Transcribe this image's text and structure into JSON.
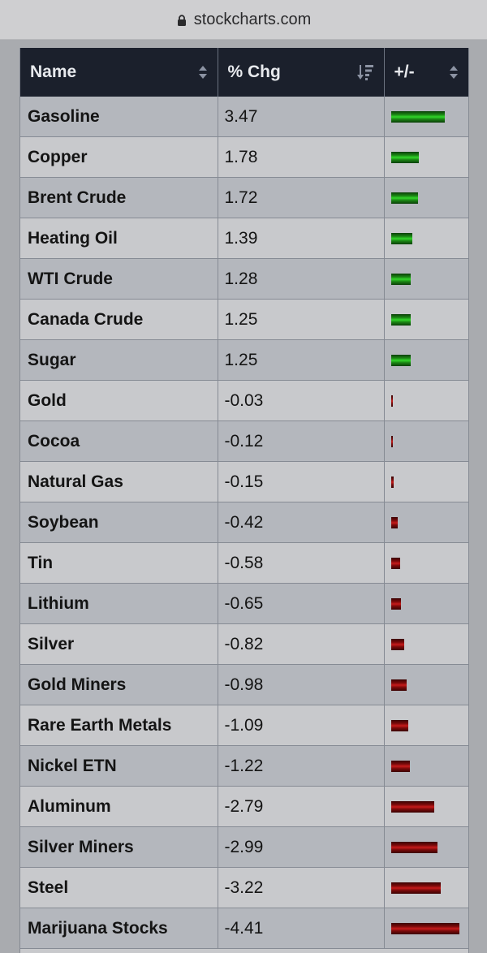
{
  "browser": {
    "url": "stockcharts.com",
    "lock_icon": "lock-icon"
  },
  "table": {
    "headers": {
      "name": "Name",
      "chg": "% Chg",
      "plusminus": "+/-"
    },
    "sort_icons": {
      "name": "sort-updown-icon",
      "chg": "sort-descending-icon",
      "plusminus": "sort-updown-icon"
    },
    "colors": {
      "header_bg": "#1b202c",
      "positive": "#1a8514",
      "negative": "#7a0a0a"
    },
    "rows": [
      {
        "name": "Gasoline",
        "chg": "3.47"
      },
      {
        "name": "Copper",
        "chg": "1.78"
      },
      {
        "name": "Brent Crude",
        "chg": "1.72"
      },
      {
        "name": "Heating Oil",
        "chg": "1.39"
      },
      {
        "name": "WTI Crude",
        "chg": "1.28"
      },
      {
        "name": "Canada Crude",
        "chg": "1.25"
      },
      {
        "name": "Sugar",
        "chg": "1.25"
      },
      {
        "name": "Gold",
        "chg": "-0.03"
      },
      {
        "name": "Cocoa",
        "chg": "-0.12"
      },
      {
        "name": "Natural Gas",
        "chg": "-0.15"
      },
      {
        "name": "Soybean",
        "chg": "-0.42"
      },
      {
        "name": "Tin",
        "chg": "-0.58"
      },
      {
        "name": "Lithium",
        "chg": "-0.65"
      },
      {
        "name": "Silver",
        "chg": "-0.82"
      },
      {
        "name": "Gold Miners",
        "chg": "-0.98"
      },
      {
        "name": "Rare Earth Metals",
        "chg": "-1.09"
      },
      {
        "name": "Nickel ETN",
        "chg": "-1.22"
      },
      {
        "name": "Aluminum",
        "chg": "-2.79"
      },
      {
        "name": "Silver Miners",
        "chg": "-2.99"
      },
      {
        "name": "Steel",
        "chg": "-3.22"
      },
      {
        "name": "Marijuana Stocks",
        "chg": "-4.41"
      }
    ]
  }
}
